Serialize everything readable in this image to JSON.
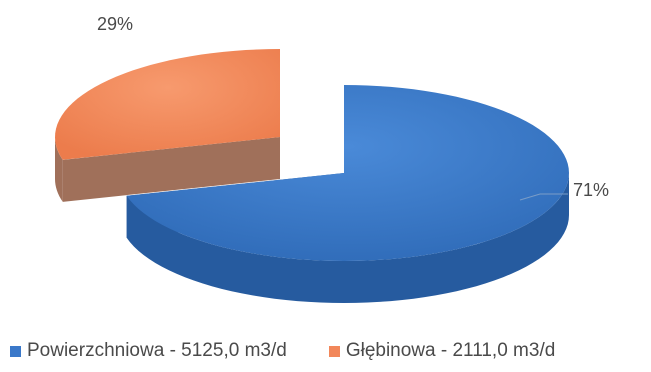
{
  "chart_data": {
    "type": "pie",
    "style": "3d-exploded",
    "title": "",
    "categories": [
      "Powierzchniowa - 5125,0 m3/d",
      "Głębinowa - 2111,0 m3/d"
    ],
    "values": [
      5125.0,
      2111.0
    ],
    "data_labels": [
      "71%",
      "29%"
    ],
    "colors": [
      "#3a78c9",
      "#f2875a"
    ],
    "legend_position": "bottom"
  }
}
